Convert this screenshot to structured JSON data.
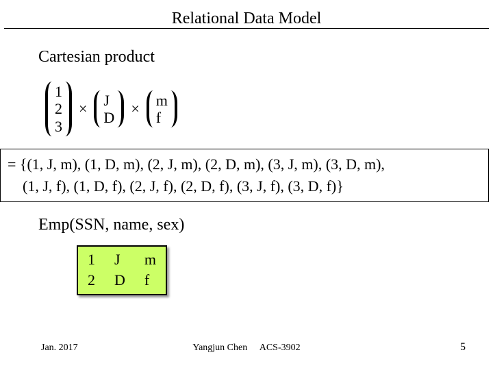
{
  "header": {
    "title": "Relational Data Model"
  },
  "subtitle": "Cartesian product",
  "sets": {
    "a": [
      "1",
      "2",
      "3"
    ],
    "b": [
      "J",
      "D"
    ],
    "c": [
      "m",
      "f"
    ],
    "op": "×"
  },
  "result": {
    "line1": "= {(1, J, m), (1, D, m), (2, J, m), (2, D, m), (3, J, m), (3, D, m),",
    "line2": "    (1, J, f), (1, D, f), (2, J, f), (2, D, f), (3, J, f), (3, D, f)}"
  },
  "schema": "Emp(SSN, name, sex)",
  "table": {
    "col1": [
      "1",
      "2"
    ],
    "col2": [
      "J",
      "D"
    ],
    "col3": [
      "m",
      "f"
    ],
    "bg_color": "#ccff66"
  },
  "footer": {
    "date": "Jan. 2017",
    "center": "Yangjun Chen     ACS-3902",
    "page": "5"
  }
}
